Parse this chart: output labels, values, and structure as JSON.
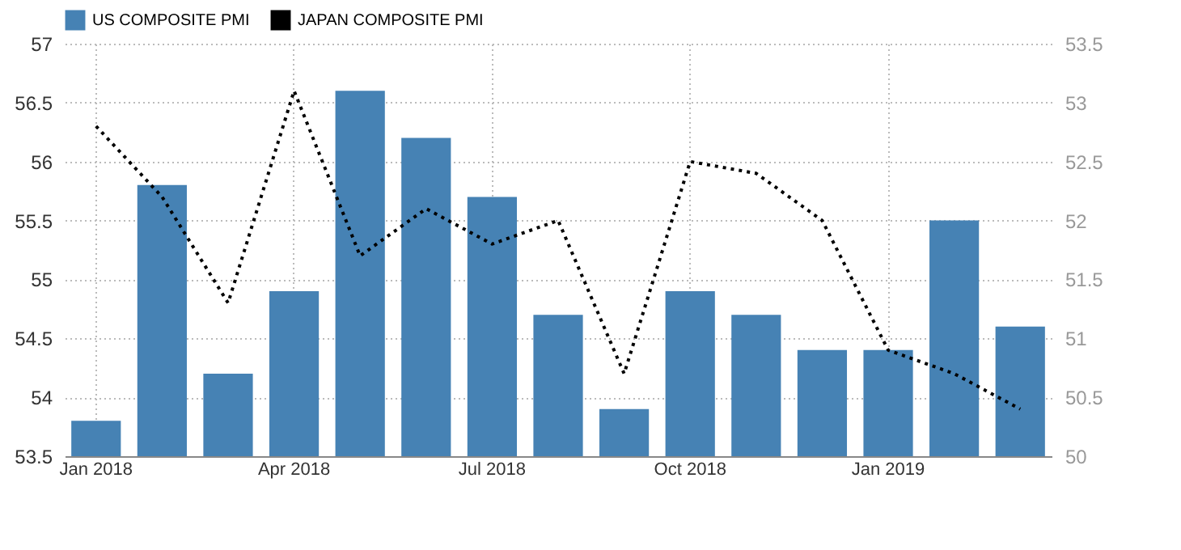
{
  "chart_data": {
    "type": "bar",
    "categories": [
      "Jan 2018",
      null,
      null,
      "Apr 2018",
      null,
      null,
      "Jul 2018",
      null,
      null,
      "Oct 2018",
      null,
      null,
      "Jan 2019",
      null,
      null
    ],
    "series": [
      {
        "name": "US COMPOSITE PMI",
        "color": "#4682b4",
        "values": [
          53.8,
          55.8,
          54.2,
          54.9,
          56.6,
          56.2,
          55.7,
          54.7,
          53.9,
          54.9,
          54.7,
          54.4,
          54.4,
          55.5,
          54.6
        ]
      },
      {
        "name": "JAPAN COMPOSITE PMI",
        "type": "line",
        "axis": "y2",
        "color": "#000000",
        "line_style": "dotted",
        "values": [
          52.8,
          52.2,
          51.3,
          53.1,
          51.7,
          52.1,
          51.8,
          52.0,
          50.7,
          52.5,
          52.4,
          52.0,
          50.9,
          50.7,
          50.4
        ]
      }
    ],
    "ylim": [
      53.5,
      57
    ],
    "yticks": [
      53.5,
      54,
      54.5,
      55,
      55.5,
      56,
      56.5,
      57
    ],
    "y2lim": [
      50,
      53.5
    ],
    "y2ticks": [
      50,
      50.5,
      51,
      51.5,
      52,
      52.5,
      53,
      53.5
    ],
    "grid": true,
    "legend": "top left"
  }
}
